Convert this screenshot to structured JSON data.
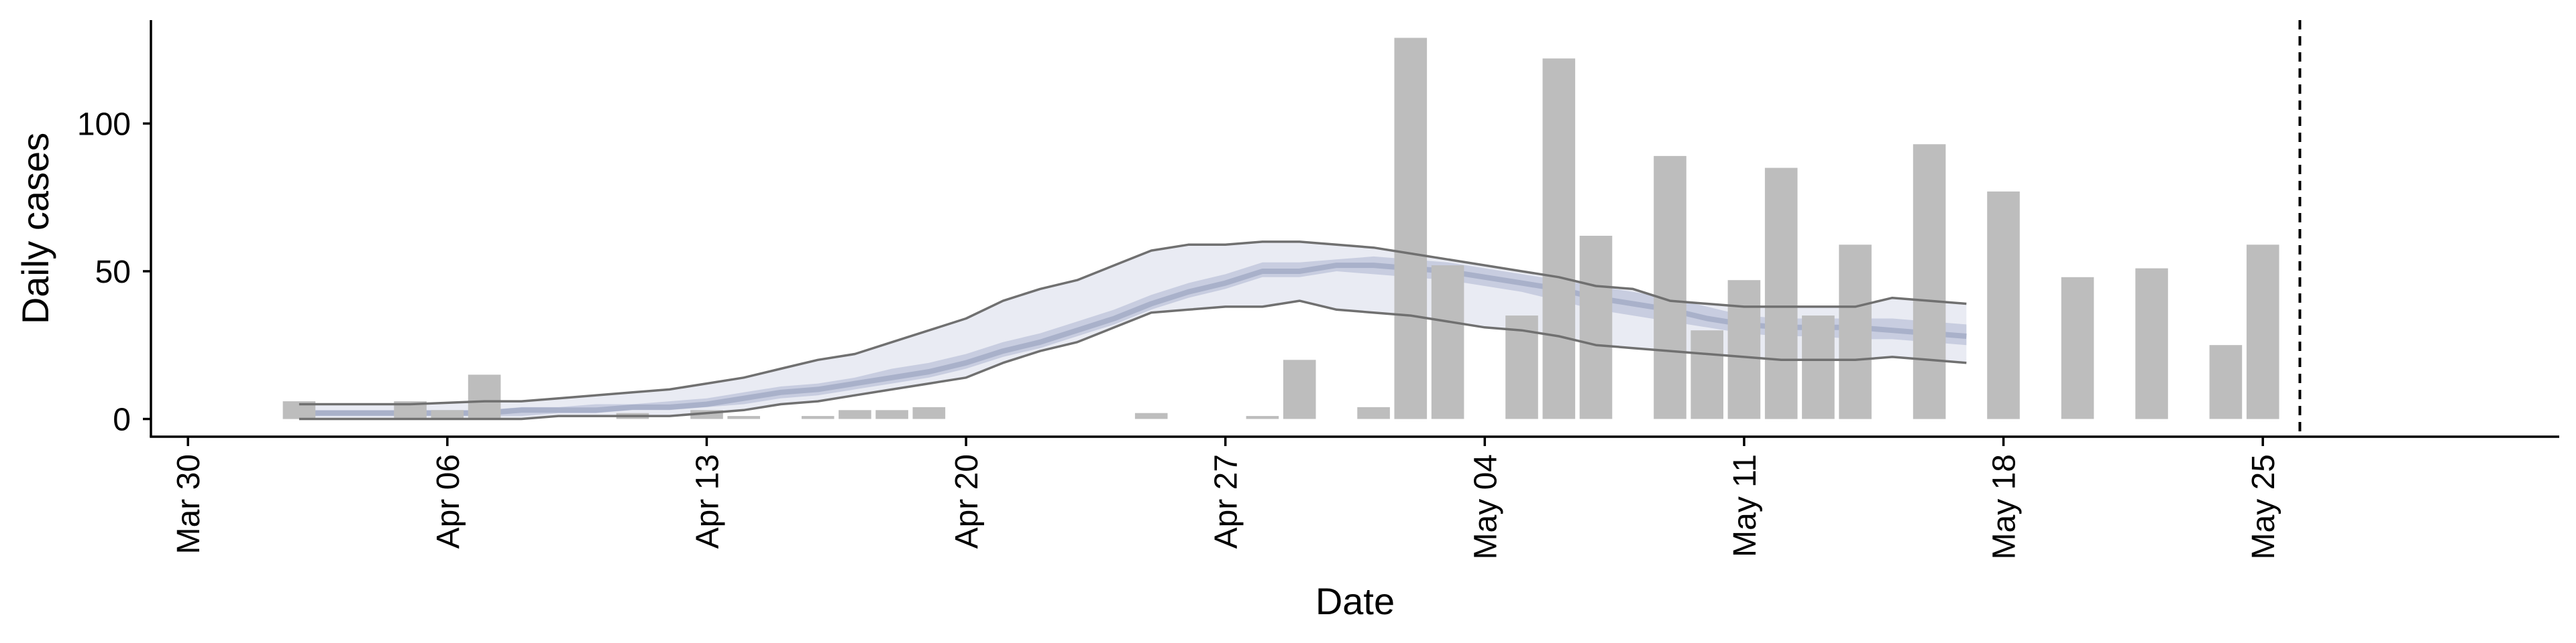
{
  "chart_data": {
    "type": "bar",
    "xlabel": "Date",
    "ylabel": "Daily cases",
    "x_ticks": [
      "Mar 30",
      "Apr 06",
      "Apr 13",
      "Apr 20",
      "Apr 27",
      "May 04",
      "May 11",
      "May 18",
      "May 25"
    ],
    "y_ticks": [
      0,
      50,
      100
    ],
    "xlim": [
      "2020-03-29",
      "2020-06-02"
    ],
    "ylim": [
      -6,
      135
    ],
    "grid": false,
    "legend": "none",
    "colors": {
      "bars": "#bdbdbd",
      "outer_band": "#e9ebf3",
      "inner_band": "#c2c8dc",
      "median": "#a9b1ca",
      "bound_lines": "#707070",
      "reference_line": "#000000"
    },
    "reference_line_date": "2020-05-26",
    "series": [
      {
        "type": "bar",
        "dates": [
          "2020-04-02",
          "2020-04-05",
          "2020-04-06",
          "2020-04-07",
          "2020-04-11",
          "2020-04-13",
          "2020-04-14",
          "2020-04-16",
          "2020-04-17",
          "2020-04-18",
          "2020-04-19",
          "2020-04-25",
          "2020-04-28",
          "2020-04-29",
          "2020-05-01",
          "2020-05-02",
          "2020-05-03",
          "2020-05-05",
          "2020-05-06",
          "2020-05-07",
          "2020-05-09",
          "2020-05-10",
          "2020-05-11",
          "2020-05-12",
          "2020-05-13",
          "2020-05-14",
          "2020-05-16",
          "2020-05-18",
          "2020-05-20",
          "2020-05-22",
          "2020-05-24",
          "2020-05-25"
        ],
        "values": [
          6,
          6,
          3,
          15,
          2,
          3,
          1,
          1,
          3,
          3,
          4,
          2,
          1,
          20,
          4,
          129,
          52,
          35,
          122,
          62,
          89,
          30,
          47,
          85,
          35,
          59,
          93,
          77,
          48,
          51,
          25,
          59
        ]
      },
      {
        "type": "band",
        "dates": [
          "2020-04-02",
          "2020-04-05",
          "2020-04-07",
          "2020-04-08",
          "2020-04-09",
          "2020-04-10",
          "2020-04-11",
          "2020-04-12",
          "2020-04-13",
          "2020-04-14",
          "2020-04-15",
          "2020-04-16",
          "2020-04-17",
          "2020-04-18",
          "2020-04-19",
          "2020-04-20",
          "2020-04-21",
          "2020-04-22",
          "2020-04-23",
          "2020-04-24",
          "2020-04-25",
          "2020-04-26",
          "2020-04-27",
          "2020-04-28",
          "2020-04-29",
          "2020-04-30",
          "2020-05-01",
          "2020-05-02",
          "2020-05-03",
          "2020-05-04",
          "2020-05-05",
          "2020-05-06",
          "2020-05-07",
          "2020-05-08",
          "2020-05-09",
          "2020-05-10",
          "2020-05-11",
          "2020-05-12",
          "2020-05-13",
          "2020-05-14",
          "2020-05-15",
          "2020-05-16",
          "2020-05-17"
        ],
        "median": [
          2,
          2,
          2,
          3,
          3,
          3,
          4,
          4,
          5,
          7,
          9,
          10,
          12,
          14,
          16,
          19,
          23,
          26,
          30,
          34,
          39,
          43,
          46,
          50,
          50,
          52,
          52,
          51,
          50,
          48,
          46,
          44,
          41,
          39,
          37,
          34,
          32,
          31,
          31,
          31,
          30,
          29,
          28
        ],
        "inner_lower": [
          1,
          1,
          1,
          1,
          2,
          2,
          3,
          3,
          4,
          5,
          7,
          8,
          10,
          12,
          14,
          17,
          21,
          24,
          28,
          32,
          37,
          41,
          44,
          48,
          48,
          50,
          49,
          48,
          47,
          45,
          43,
          40,
          37,
          35,
          33,
          31,
          29,
          28,
          28,
          27,
          27,
          26,
          25
        ],
        "inner_upper": [
          3,
          3,
          3,
          4,
          4,
          5,
          5,
          6,
          7,
          9,
          11,
          12,
          14,
          17,
          19,
          22,
          26,
          29,
          33,
          37,
          42,
          46,
          49,
          53,
          53,
          54,
          55,
          54,
          53,
          51,
          49,
          47,
          45,
          43,
          41,
          38,
          35,
          34,
          34,
          34,
          34,
          33,
          32
        ],
        "outer_lower": [
          0,
          0,
          0,
          0,
          1,
          1,
          1,
          1,
          2,
          3,
          5,
          6,
          8,
          10,
          12,
          14,
          19,
          23,
          26,
          31,
          36,
          37,
          38,
          38,
          40,
          37,
          36,
          35,
          33,
          31,
          30,
          28,
          25,
          24,
          23,
          22,
          21,
          20,
          20,
          20,
          21,
          20,
          19
        ],
        "outer_upper": [
          5,
          5,
          6,
          6,
          7,
          8,
          9,
          10,
          12,
          14,
          17,
          20,
          22,
          26,
          30,
          34,
          40,
          44,
          47,
          52,
          57,
          59,
          59,
          60,
          60,
          59,
          58,
          56,
          54,
          52,
          50,
          48,
          45,
          44,
          40,
          39,
          38,
          38,
          38,
          38,
          41,
          40,
          39
        ]
      }
    ]
  }
}
